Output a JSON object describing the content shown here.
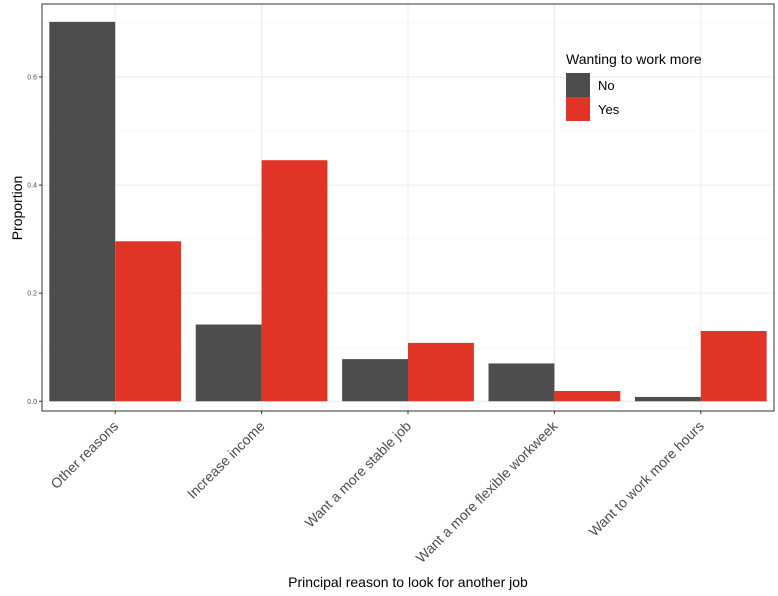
{
  "chart_data": {
    "type": "bar",
    "title": "",
    "xlabel": "Principal reason to look for another job",
    "ylabel": "Proportion",
    "categories": [
      "Other reasons",
      "Increase income",
      "Want a more stable job",
      "Want a more flexible workweek",
      "Want to work more hours"
    ],
    "series": [
      {
        "name": "No",
        "color": "#4d4d4d",
        "values": [
          0.702,
          0.142,
          0.078,
          0.07,
          0.008
        ]
      },
      {
        "name": "Yes",
        "color": "#e03526",
        "values": [
          0.296,
          0.446,
          0.108,
          0.019,
          0.13
        ]
      }
    ],
    "ylim": [
      -0.018,
      0.735
    ],
    "yticks": [
      0.0,
      0.2,
      0.4,
      0.6
    ],
    "ytick_labels": [
      "0.0",
      "0.2",
      "0.4",
      "0.6"
    ],
    "grid": true,
    "legend": {
      "title": "Wanting to work more",
      "position": "top-right",
      "labels": [
        "No",
        "Yes"
      ]
    }
  }
}
